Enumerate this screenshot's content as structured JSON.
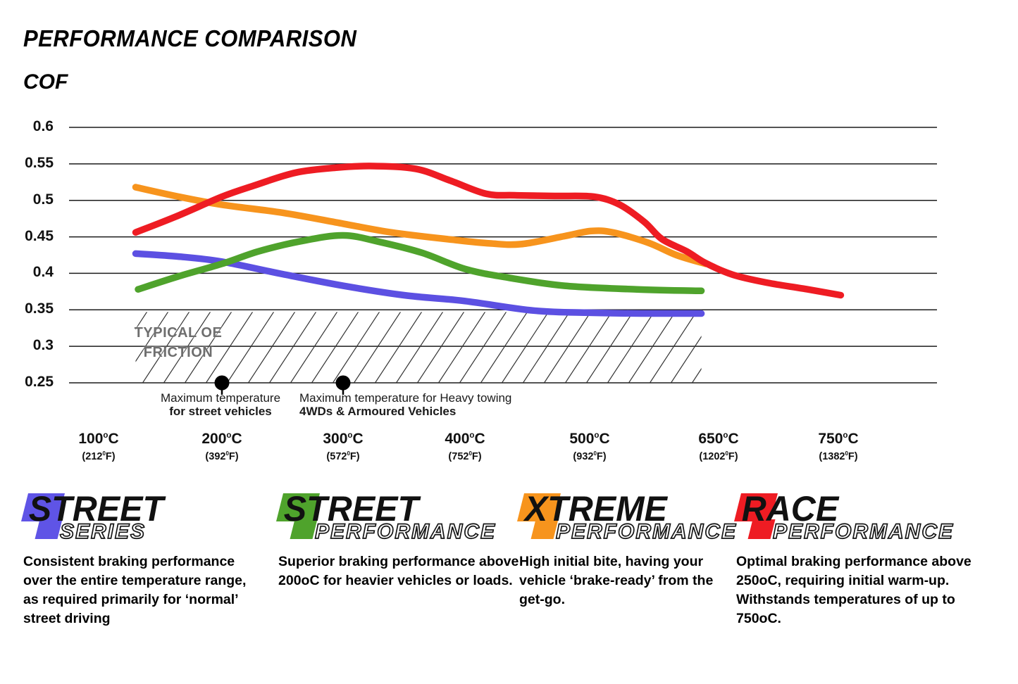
{
  "header": {
    "title": "PERFORMANCE COMPARISON"
  },
  "chart_data": {
    "type": "line",
    "title": "PERFORMANCE COMPARISON",
    "y_axis": {
      "title": "COF",
      "min": 0.25,
      "max": 0.6,
      "grid": true,
      "tick_labels": [
        "0.6",
        "0.55",
        "0.5",
        "0.45",
        "0.4",
        "0.35",
        "0.3",
        "0.25"
      ]
    },
    "x_axis": {
      "unit_c": "C",
      "unit_f": "F",
      "sup_c": "o",
      "sup_f": "0",
      "ticks": [
        {
          "c": "100",
          "f": "212"
        },
        {
          "c": "200",
          "f": "392"
        },
        {
          "c": "300",
          "f": "572"
        },
        {
          "c": "400",
          "f": "752"
        },
        {
          "c": "500",
          "f": "932"
        },
        {
          "c": "650",
          "f": "1202"
        },
        {
          "c": "750",
          "f": "1382"
        }
      ]
    },
    "oe_band": {
      "label_line1": "TYPICAL OE",
      "label_line2": "FRICTION",
      "cof_min": 0.25,
      "cof_max": 0.35,
      "temp_min": 130,
      "temp_max": 630
    },
    "markers": [
      {
        "temp": 200
      },
      {
        "temp": 300
      }
    ],
    "annotations": [
      {
        "temp": 200,
        "line1": "Maximum temperature",
        "line2": "for street vehicles"
      },
      {
        "temp": 300,
        "line1": "Maximum temperature for Heavy towing",
        "line2": "4WDs & Armoured Vehicles"
      }
    ],
    "series": [
      {
        "name": "Street Series",
        "color": "#5C50E2",
        "points": [
          [
            130,
            0.427
          ],
          [
            165,
            0.423
          ],
          [
            200,
            0.416
          ],
          [
            250,
            0.399
          ],
          [
            300,
            0.383
          ],
          [
            350,
            0.37
          ],
          [
            400,
            0.362
          ],
          [
            455,
            0.349
          ],
          [
            500,
            0.346
          ],
          [
            560,
            0.345
          ],
          [
            630,
            0.345
          ]
        ]
      },
      {
        "name": "Street Performance",
        "color": "#4FA32C",
        "points": [
          [
            132,
            0.378
          ],
          [
            165,
            0.396
          ],
          [
            200,
            0.413
          ],
          [
            230,
            0.43
          ],
          [
            265,
            0.444
          ],
          [
            300,
            0.452
          ],
          [
            330,
            0.443
          ],
          [
            365,
            0.428
          ],
          [
            400,
            0.406
          ],
          [
            435,
            0.394
          ],
          [
            480,
            0.383
          ],
          [
            555,
            0.378
          ],
          [
            630,
            0.376
          ]
        ]
      },
      {
        "name": "Xtreme Performance",
        "color": "#F7941D",
        "points": [
          [
            130,
            0.518
          ],
          [
            165,
            0.505
          ],
          [
            200,
            0.494
          ],
          [
            250,
            0.483
          ],
          [
            300,
            0.468
          ],
          [
            340,
            0.456
          ],
          [
            390,
            0.446
          ],
          [
            420,
            0.441
          ],
          [
            445,
            0.44
          ],
          [
            480,
            0.451
          ],
          [
            502,
            0.458
          ],
          [
            527,
            0.456
          ],
          [
            568,
            0.442
          ],
          [
            601,
            0.425
          ],
          [
            635,
            0.413
          ]
        ]
      },
      {
        "name": "Race Performance",
        "color": "#EE1C23",
        "points": [
          [
            130,
            0.456
          ],
          [
            163,
            0.478
          ],
          [
            200,
            0.505
          ],
          [
            226,
            0.52
          ],
          [
            261,
            0.538
          ],
          [
            296,
            0.545
          ],
          [
            325,
            0.547
          ],
          [
            360,
            0.543
          ],
          [
            388,
            0.527
          ],
          [
            417,
            0.509
          ],
          [
            440,
            0.507
          ],
          [
            473,
            0.506
          ],
          [
            505,
            0.505
          ],
          [
            535,
            0.494
          ],
          [
            564,
            0.47
          ],
          [
            584,
            0.447
          ],
          [
            613,
            0.43
          ],
          [
            635,
            0.414
          ],
          [
            662,
            0.398
          ],
          [
            691,
            0.387
          ],
          [
            721,
            0.379
          ],
          [
            752,
            0.37
          ]
        ]
      }
    ]
  },
  "legend": {
    "items": [
      {
        "word1": "STREET",
        "word2": "SERIES",
        "color": "#5F54E6",
        "description": "Consistent braking performance over the entire temperature range, as required primarily for ‘normal’ street driving"
      },
      {
        "word1": "STREET",
        "word2": "PERFORMANCE",
        "color": "#4FA32C",
        "description": "Superior braking performance above 200oC for heavier vehicles or loads."
      },
      {
        "word1": "XTREME",
        "word2": "PERFORMANCE",
        "color": "#F7941D",
        "description": "High initial bite, having your vehicle ‘brake-ready’ from the get-go."
      },
      {
        "word1": "RACE",
        "word2": "PERFORMANCE",
        "color": "#EE1C23",
        "description": "Optimal braking performance above 250oC, requiring initial warm-up. Withstands temperatures of up to 750oC."
      }
    ]
  }
}
